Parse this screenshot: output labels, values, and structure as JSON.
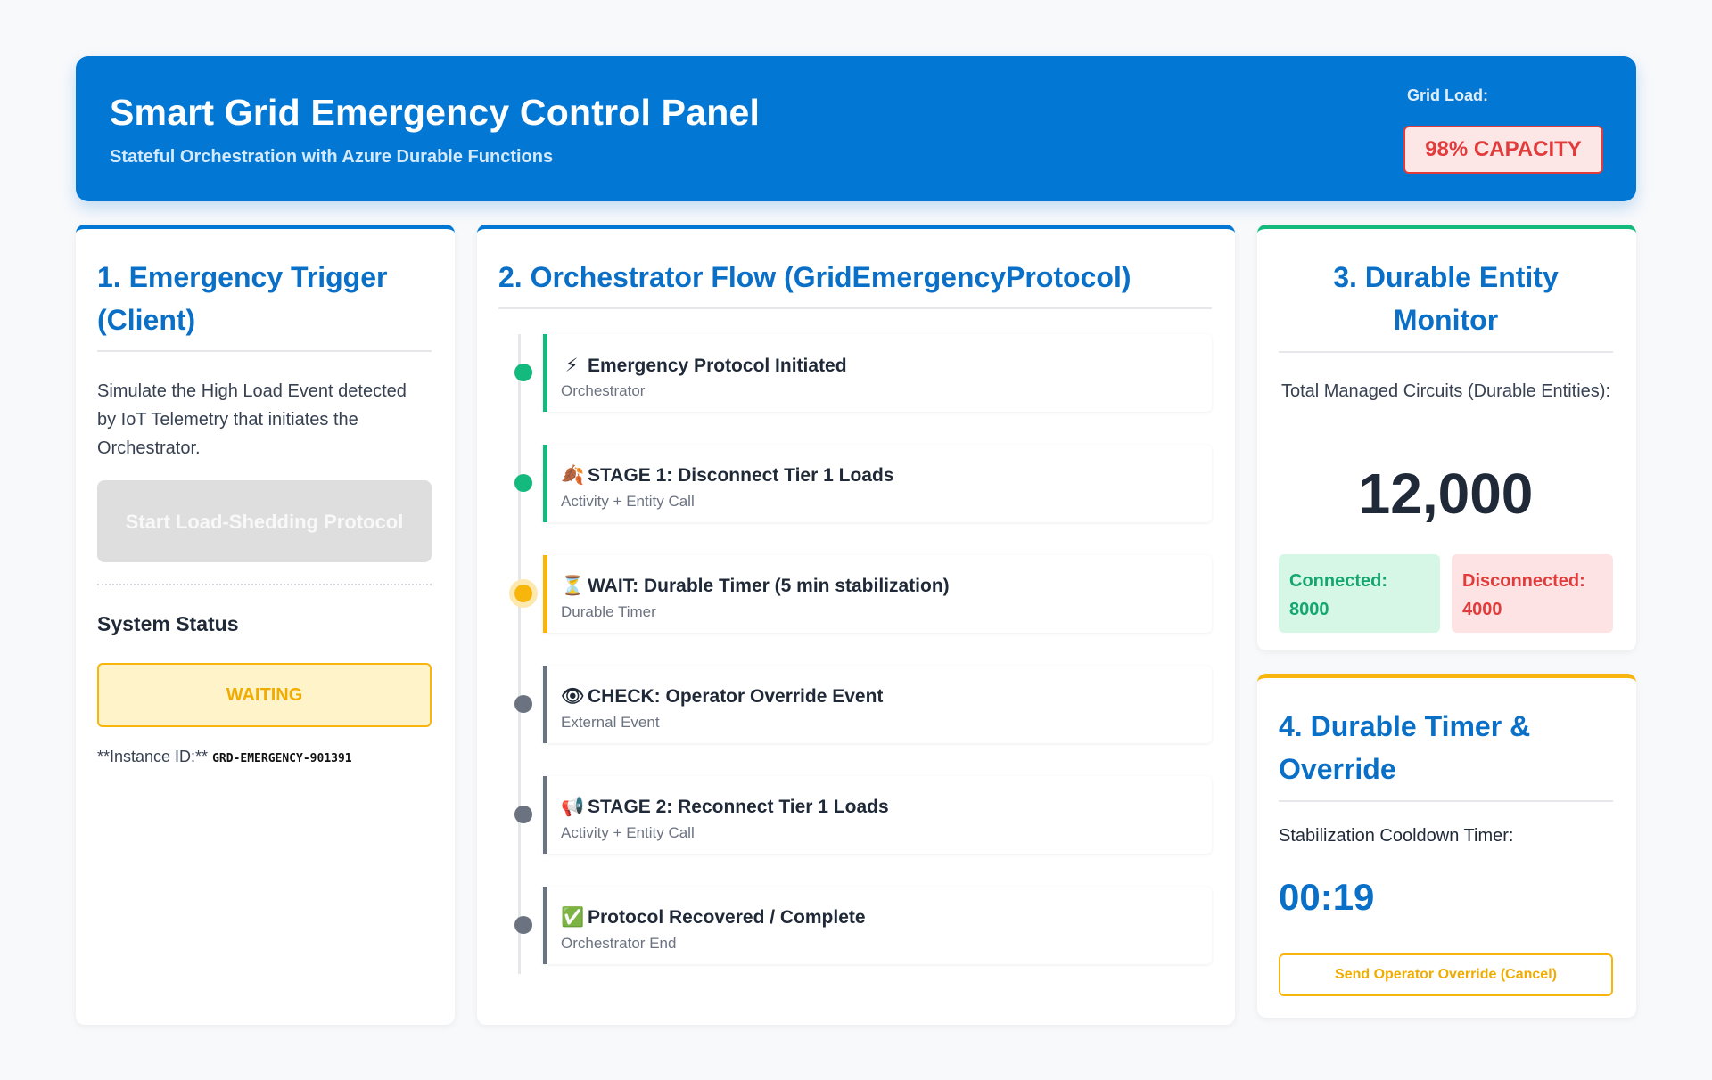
{
  "header": {
    "title": "Smart Grid Emergency Control Panel",
    "subtitle": "Stateful Orchestration with Azure Durable Functions",
    "grid_load_label": "Grid Load:",
    "grid_load_value": "98% CAPACITY"
  },
  "trigger": {
    "title": "1. Emergency Trigger (Client)",
    "description": "Simulate the High Load Event detected by IoT Telemetry that initiates the Orchestrator.",
    "start_button": "Start Load-Shedding Protocol",
    "system_status_label": "System Status",
    "status_value": "WAITING",
    "instance_label": "**Instance ID:**",
    "instance_id": "GRD-EMERGENCY-901391"
  },
  "orchestrator": {
    "title": "2. Orchestrator Flow (GridEmergencyProtocol)",
    "steps": [
      {
        "icon": "⚡",
        "title": "Emergency Protocol Initiated",
        "subtitle": "Orchestrator",
        "state": "done"
      },
      {
        "icon": "🍂",
        "title": "STAGE 1: Disconnect Tier 1 Loads",
        "subtitle": "Activity + Entity Call",
        "state": "done"
      },
      {
        "icon": "⏳",
        "title": "WAIT: Durable Timer (5 min stabilization)",
        "subtitle": "Durable Timer",
        "state": "active"
      },
      {
        "icon": "👁",
        "title": "CHECK: Operator Override Event",
        "subtitle": "External Event",
        "state": "pending"
      },
      {
        "icon": "📢",
        "title": "STAGE 2: Reconnect Tier 1 Loads",
        "subtitle": "Activity + Entity Call",
        "state": "pending"
      },
      {
        "icon": "✅",
        "title": "Protocol Recovered / Complete",
        "subtitle": "Orchestrator End",
        "state": "pending"
      }
    ]
  },
  "entity_monitor": {
    "title": "3. Durable Entity Monitor",
    "circuits_label": "Total Managed Circuits (Durable Entities):",
    "circuits_total": "12,000",
    "connected_label": "Connected:",
    "connected_value": "8000",
    "disconnected_label": "Disconnected:",
    "disconnected_value": "4000"
  },
  "timer": {
    "title": "4. Durable Timer & Override",
    "label": "Stabilization Cooldown Timer:",
    "value": "00:19",
    "override_button": "Send Operator Override (Cancel)"
  },
  "colors": {
    "primary": "#0278d4",
    "success": "#13b97d",
    "warning": "#f8b60d",
    "danger": "#e23b3b",
    "pending": "#6b7280"
  }
}
